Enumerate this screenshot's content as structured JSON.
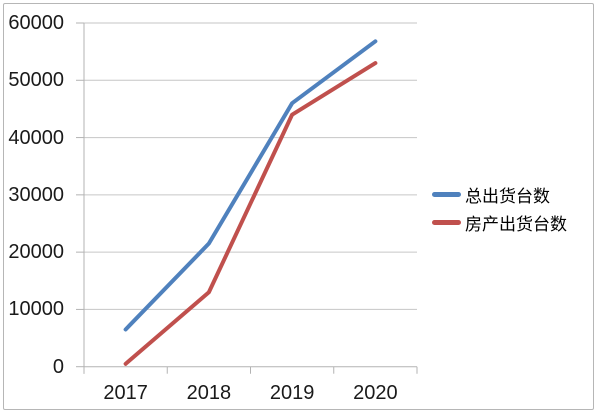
{
  "chart_data": {
    "type": "line",
    "categories": [
      "2017",
      "2018",
      "2019",
      "2020"
    ],
    "series": [
      {
        "name": "总出货台数",
        "color": "#4F81BD",
        "values": [
          6500,
          21500,
          46000,
          56800
        ]
      },
      {
        "name": "房产出货台数",
        "color": "#C0504D",
        "values": [
          500,
          13000,
          44000,
          53000
        ]
      }
    ],
    "title": "",
    "xlabel": "",
    "ylabel": "",
    "ylim": [
      0,
      60000
    ],
    "ytick_interval": 10000,
    "yticks": [
      "0",
      "10000",
      "20000",
      "30000",
      "40000",
      "50000",
      "60000"
    ],
    "grid": true,
    "legend_position": "right"
  },
  "colors": {
    "background": "#ffffff",
    "frame_border": "#b6b6b6",
    "gridline": "#c6c6c6",
    "axis_line": "#b3b3b3",
    "tick": "#b3b3b3",
    "label_text": "#1a1a1a"
  }
}
